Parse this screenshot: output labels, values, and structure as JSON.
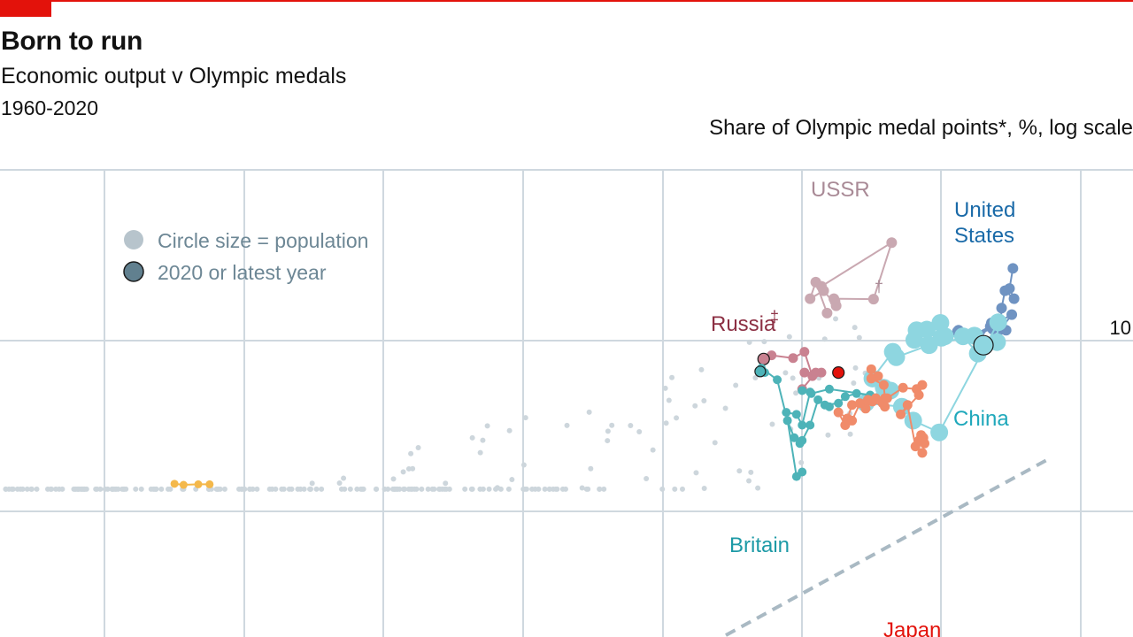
{
  "header": {
    "title": "Born to run",
    "subtitle": "Economic output v Olympic medals",
    "period": "1960-2020"
  },
  "colors": {
    "brand_red": "#e3120b",
    "grid": "#cfd8df",
    "background_dots": "#cdd6dc",
    "ussr": "#c9a8b1",
    "united_states": "#6f93c2",
    "china": "#8ed6e0",
    "russia": "#c98190",
    "britain": "#4db3b8",
    "japan": "#f08b6a",
    "other": "#f4b84a",
    "trend": "#a9b9c3"
  },
  "chart_data": {
    "type": "scatter",
    "title": "Born to run",
    "subtitle": "Economic output v Olympic medals",
    "ylabel": "Share of Olympic medal points*, %, log scale",
    "y_scale": "log",
    "y_tick_labels": [
      "10"
    ],
    "legend": {
      "placement": "top-left",
      "entries": [
        "Circle size = population",
        "2020 or latest year"
      ]
    },
    "annotations": [
      "†",
      "‡"
    ],
    "series": [
      {
        "name": "USSR",
        "color": "#c9a8b1",
        "label_color": "#a98a96",
        "points": [
          [
            0.725,
            20.8
          ],
          [
            0.787,
            37.5
          ],
          [
            0.771,
            17.5
          ],
          [
            0.736,
            17.6
          ],
          [
            0.737,
            17.0
          ],
          [
            0.738,
            16.0
          ],
          [
            0.727,
            19.6
          ],
          [
            0.715,
            17.6
          ],
          [
            0.72,
            22.0
          ],
          [
            0.73,
            14.5
          ]
        ]
      },
      {
        "name": "United States",
        "color": "#6f93c2",
        "label_color": "#1a6aa8",
        "points": [
          [
            0.894,
            26.5
          ],
          [
            0.891,
            20.2
          ],
          [
            0.895,
            17.6
          ],
          [
            0.887,
            19.6
          ],
          [
            0.884,
            15.5
          ],
          [
            0.883,
            11.6
          ],
          [
            0.893,
            14.2
          ],
          [
            0.874,
            12.1
          ],
          [
            0.862,
            11.0
          ],
          [
            0.876,
            11.7
          ],
          [
            0.888,
            11.5
          ],
          [
            0.875,
            12.7
          ],
          [
            0.865,
            10.3
          ],
          [
            0.845,
            11.3
          ],
          [
            0.846,
            11.5
          ]
        ]
      },
      {
        "name": "China",
        "color": "#8ed6e0",
        "label_color": "#1fa8bb",
        "points": [
          [
            0.83,
            12.7
          ],
          [
            0.818,
            11.6
          ],
          [
            0.831,
            10.4
          ],
          [
            0.809,
            11.5
          ],
          [
            0.807,
            10.1
          ],
          [
            0.834,
            10.6
          ],
          [
            0.85,
            10.6
          ],
          [
            0.863,
            8.4
          ],
          [
            0.86,
            10.7
          ],
          [
            0.82,
            9.4
          ],
          [
            0.791,
            8.0
          ],
          [
            0.788,
            8.6
          ],
          [
            0.77,
            6.0
          ],
          [
            0.786,
            5.1
          ],
          [
            0.78,
            5.3
          ],
          [
            0.764,
            4.3
          ],
          [
            0.796,
            4.1
          ],
          [
            0.806,
            3.4
          ],
          [
            0.829,
            2.9
          ],
          [
            0.881,
            12.8
          ],
          [
            0.88,
            9.8
          ]
        ],
        "latest": [
          0.868,
          9.4
        ]
      },
      {
        "name": "Russia",
        "color": "#c98190",
        "label_color": "#8c2f43",
        "points": [
          [
            0.681,
            8.2
          ],
          [
            0.7,
            7.9
          ],
          [
            0.71,
            8.6
          ],
          [
            0.717,
            6.2
          ],
          [
            0.725,
            6.5
          ],
          [
            0.71,
            6.5
          ],
          [
            0.72,
            6.5
          ],
          [
            0.708,
            5.2
          ]
        ],
        "latest": [
          0.674,
          7.8
        ]
      },
      {
        "name": "Britain",
        "color": "#4db3b8",
        "label_color": "#1d9aa6",
        "points": [
          [
            0.675,
            6.5
          ],
          [
            0.672,
            6.9
          ],
          [
            0.686,
            5.9
          ],
          [
            0.695,
            3.4
          ],
          [
            0.701,
            2.7
          ],
          [
            0.706,
            2.5
          ],
          [
            0.708,
            2.6
          ],
          [
            0.715,
            3.2
          ],
          [
            0.722,
            4.5
          ],
          [
            0.732,
            4.1
          ],
          [
            0.728,
            4.2
          ],
          [
            0.74,
            4.3
          ],
          [
            0.746,
            4.7
          ],
          [
            0.756,
            4.9
          ],
          [
            0.768,
            4.8
          ],
          [
            0.732,
            5.2
          ],
          [
            0.716,
            4.9
          ],
          [
            0.708,
            5.1
          ],
          [
            0.715,
            5.0
          ],
          [
            0.708,
            3.2
          ],
          [
            0.703,
            3.7
          ],
          [
            0.694,
            3.8
          ],
          [
            0.703,
            1.6
          ],
          [
            0.708,
            1.7
          ]
        ],
        "latest": [
          0.671,
          6.6
        ]
      },
      {
        "name": "Japan",
        "color": "#f08b6a",
        "label_color": "#e3120b",
        "points": [
          [
            0.769,
            6.8
          ],
          [
            0.775,
            6.2
          ],
          [
            0.769,
            6.0
          ],
          [
            0.78,
            5.5
          ],
          [
            0.781,
            4.6
          ],
          [
            0.779,
            4.3
          ],
          [
            0.781,
            4.1
          ],
          [
            0.77,
            4.4
          ],
          [
            0.764,
            4.0
          ],
          [
            0.752,
            4.2
          ],
          [
            0.748,
            3.5
          ],
          [
            0.74,
            3.8
          ],
          [
            0.746,
            3.2
          ],
          [
            0.752,
            3.4
          ],
          [
            0.759,
            4.3
          ],
          [
            0.766,
            4.5
          ],
          [
            0.773,
            4.6
          ],
          [
            0.783,
            4.6
          ],
          [
            0.797,
            5.3
          ],
          [
            0.809,
            5.2
          ],
          [
            0.814,
            5.5
          ],
          [
            0.811,
            4.8
          ],
          [
            0.795,
            3.7
          ],
          [
            0.801,
            4.2
          ],
          [
            0.808,
            2.4
          ],
          [
            0.813,
            2.8
          ],
          [
            0.815,
            2.7
          ],
          [
            0.811,
            2.6
          ],
          [
            0.816,
            2.5
          ],
          [
            0.814,
            2.2
          ]
        ],
        "latest": [
          0.74,
          6.5
        ]
      },
      {
        "name": "",
        "color": "#f4b84a",
        "label_color": "#f4b84a",
        "points": [
          [
            0.154,
            1.45
          ],
          [
            0.162,
            1.43
          ],
          [
            0.175,
            1.44
          ],
          [
            0.185,
            1.44
          ]
        ]
      }
    ]
  }
}
